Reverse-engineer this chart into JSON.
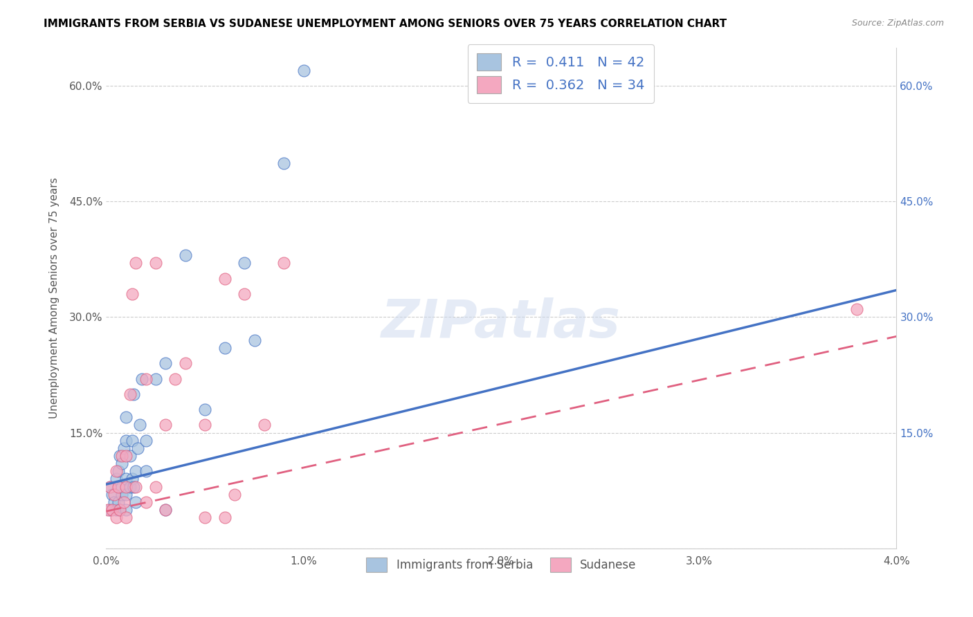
{
  "title": "IMMIGRANTS FROM SERBIA VS SUDANESE UNEMPLOYMENT AMONG SENIORS OVER 75 YEARS CORRELATION CHART",
  "source": "Source: ZipAtlas.com",
  "xlabel": "",
  "ylabel": "Unemployment Among Seniors over 75 years",
  "xlim": [
    0.0,
    0.04
  ],
  "ylim": [
    0.0,
    0.65
  ],
  "xticks": [
    0.0,
    0.01,
    0.02,
    0.03,
    0.04
  ],
  "xticklabels": [
    "0.0%",
    "1.0%",
    "2.0%",
    "3.0%",
    "4.0%"
  ],
  "yticks_left": [
    0.0,
    0.15,
    0.3,
    0.45,
    0.6
  ],
  "yticklabels_left": [
    "",
    "15.0%",
    "30.0%",
    "45.0%",
    "60.0%"
  ],
  "yticks_right": [
    0.0,
    0.15,
    0.3,
    0.45,
    0.6
  ],
  "yticklabels_right": [
    "",
    "15.0%",
    "30.0%",
    "45.0%",
    "60.0%"
  ],
  "legend_label1": "Immigrants from Serbia",
  "legend_label2": "Sudanese",
  "R1": "0.411",
  "N1": "42",
  "R2": "0.362",
  "N2": "34",
  "color1": "#a8c4e0",
  "color2": "#f4a8c0",
  "line_color1": "#4472c4",
  "line_color2": "#e06080",
  "watermark": "ZIPatlas",
  "trendline1_x": [
    0.0,
    0.04
  ],
  "trendline1_y": [
    0.083,
    0.335
  ],
  "trendline2_x": [
    0.0,
    0.04
  ],
  "trendline2_y": [
    0.048,
    0.275
  ],
  "serbia_x": [
    0.0002,
    0.0002,
    0.0003,
    0.0004,
    0.0005,
    0.0005,
    0.0006,
    0.0006,
    0.0007,
    0.0007,
    0.0008,
    0.0008,
    0.0008,
    0.0009,
    0.001,
    0.001,
    0.001,
    0.001,
    0.001,
    0.0012,
    0.0012,
    0.0013,
    0.0013,
    0.0014,
    0.0014,
    0.0015,
    0.0015,
    0.0016,
    0.0017,
    0.0018,
    0.002,
    0.002,
    0.0025,
    0.003,
    0.003,
    0.004,
    0.005,
    0.006,
    0.007,
    0.0075,
    0.009,
    0.01
  ],
  "serbia_y": [
    0.05,
    0.08,
    0.07,
    0.06,
    0.05,
    0.09,
    0.06,
    0.1,
    0.05,
    0.12,
    0.07,
    0.08,
    0.11,
    0.13,
    0.05,
    0.07,
    0.09,
    0.14,
    0.17,
    0.08,
    0.12,
    0.09,
    0.14,
    0.08,
    0.2,
    0.06,
    0.1,
    0.13,
    0.16,
    0.22,
    0.1,
    0.14,
    0.22,
    0.05,
    0.24,
    0.38,
    0.18,
    0.26,
    0.37,
    0.27,
    0.5,
    0.62
  ],
  "sudanese_x": [
    0.0001,
    0.0002,
    0.0003,
    0.0004,
    0.0005,
    0.0005,
    0.0006,
    0.0007,
    0.0008,
    0.0009,
    0.001,
    0.001,
    0.001,
    0.0012,
    0.0013,
    0.0015,
    0.0015,
    0.002,
    0.002,
    0.0025,
    0.0025,
    0.003,
    0.003,
    0.0035,
    0.004,
    0.005,
    0.005,
    0.006,
    0.006,
    0.0065,
    0.007,
    0.008,
    0.009,
    0.038
  ],
  "sudanese_y": [
    0.05,
    0.08,
    0.05,
    0.07,
    0.04,
    0.1,
    0.08,
    0.05,
    0.12,
    0.06,
    0.04,
    0.08,
    0.12,
    0.2,
    0.33,
    0.37,
    0.08,
    0.06,
    0.22,
    0.08,
    0.37,
    0.05,
    0.16,
    0.22,
    0.24,
    0.04,
    0.16,
    0.04,
    0.35,
    0.07,
    0.33,
    0.16,
    0.37,
    0.31
  ]
}
